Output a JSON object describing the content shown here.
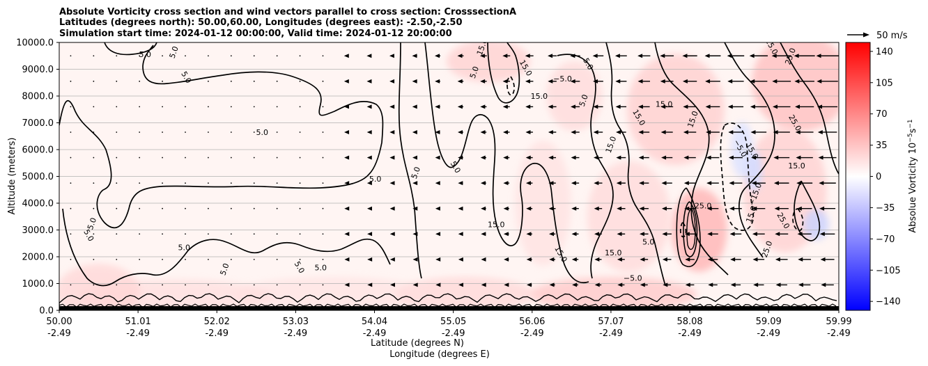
{
  "chart_data": {
    "type": "heatmap",
    "title_lines": [
      "Absolute Vorticity cross section and wind vectors parallel to cross section: CrosssectionA",
      "Latitudes (degrees north): 50.00,60.00, Longitudes (degrees east): -2.50,-2.50",
      "Simulation start time: 2024-01-12 00:00:00, Valid time: 2024-01-12 20:00:00"
    ],
    "xlabel_lines": [
      "Latitude (degrees N)",
      "Longitude (degrees E)"
    ],
    "ylabel": "Altitude (meters)",
    "x_ticks": [
      {
        "lat": "50.00",
        "lon": "-2.49",
        "value": 50.0
      },
      {
        "lat": "51.01",
        "lon": "-2.49",
        "value": 51.01
      },
      {
        "lat": "52.02",
        "lon": "-2.49",
        "value": 52.02
      },
      {
        "lat": "53.03",
        "lon": "-2.49",
        "value": 53.03
      },
      {
        "lat": "54.04",
        "lon": "-2.49",
        "value": 54.04
      },
      {
        "lat": "55.05",
        "lon": "-2.49",
        "value": 55.05
      },
      {
        "lat": "56.06",
        "lon": "-2.49",
        "value": 56.06
      },
      {
        "lat": "57.07",
        "lon": "-2.49",
        "value": 57.07
      },
      {
        "lat": "58.08",
        "lon": "-2.49",
        "value": 58.08
      },
      {
        "lat": "59.09",
        "lon": "-2.49",
        "value": 59.09
      },
      {
        "lat": "59.99",
        "lon": "-2.49",
        "value": 59.99
      }
    ],
    "xlim": [
      50.0,
      59.99
    ],
    "y_ticks": [
      "0.0",
      "1000.0",
      "2000.0",
      "3000.0",
      "4000.0",
      "5000.0",
      "6000.0",
      "7000.0",
      "8000.0",
      "9000.0",
      "10000.0"
    ],
    "ylim": [
      0,
      10000
    ],
    "grid": "horizontal",
    "colorbar": {
      "label": "Absolue Vorticity 10$^{-5}$s$^{-1}$",
      "label_main": "Absolue Vorticity 10",
      "label_sup1": "−5",
      "label_mid": "s",
      "label_sup2": "−1",
      "ticks": [
        "140",
        "105",
        "70",
        "35",
        "0",
        "−35",
        "−70",
        "−105",
        "−140"
      ],
      "range": [
        -150,
        150
      ],
      "colormap": "bwr",
      "color_min": "#0000ff",
      "color_mid": "#ffffff",
      "color_max": "#ff0000"
    },
    "quiver_key": {
      "label": "50 m/s",
      "value": 50
    },
    "contour_levels": [
      5.0,
      15.0,
      25.0
    ],
    "contour_color": "#000000",
    "contour_labels": [
      {
        "text": "5.0",
        "lat": 51.1,
        "alt": 9450
      },
      {
        "text": "5.0",
        "lat": 51.5,
        "alt": 9600
      },
      {
        "text": "5.0",
        "lat": 51.6,
        "alt": 8650
      },
      {
        "text": "5.0",
        "lat": 52.6,
        "alt": 6550
      },
      {
        "text": "5.0",
        "lat": 50.45,
        "alt": 3200
      },
      {
        "text": "5.0",
        "lat": 50.35,
        "alt": 2750
      },
      {
        "text": "5.0",
        "lat": 51.6,
        "alt": 2250
      },
      {
        "text": "5.0",
        "lat": 52.15,
        "alt": 1500
      },
      {
        "text": "5.0",
        "lat": 53.05,
        "alt": 1560
      },
      {
        "text": "5.0",
        "lat": 53.35,
        "alt": 1500
      },
      {
        "text": "5.0",
        "lat": 54.6,
        "alt": 5100
      },
      {
        "text": "5.0",
        "lat": 55.05,
        "alt": 5300
      },
      {
        "text": "5.0",
        "lat": 54.05,
        "alt": 4800
      },
      {
        "text": "5.0",
        "lat": 55.35,
        "alt": 8850
      },
      {
        "text": "5.0",
        "lat": 56.75,
        "alt": 9150
      },
      {
        "text": "5.0",
        "lat": 57.55,
        "alt": 2450
      },
      {
        "text": "5.0",
        "lat": 56.75,
        "alt": 7800
      },
      {
        "text": "15.0",
        "lat": 55.95,
        "alt": 9000
      },
      {
        "text": "15.0",
        "lat": 56.15,
        "alt": 7900
      },
      {
        "text": "15.0",
        "lat": 57.1,
        "alt": 6150
      },
      {
        "text": "15.0",
        "lat": 57.4,
        "alt": 7150
      },
      {
        "text": "15.0",
        "lat": 57.75,
        "alt": 7600
      },
      {
        "text": "15.0",
        "lat": 55.45,
        "alt": 9800
      },
      {
        "text": "15.0",
        "lat": 56.4,
        "alt": 2050
      },
      {
        "text": "15.0",
        "lat": 57.1,
        "alt": 2050
      },
      {
        "text": "15.0",
        "lat": 58.15,
        "alt": 7100
      },
      {
        "text": "15.0",
        "lat": 58.85,
        "alt": 5900
      },
      {
        "text": "15.0",
        "lat": 59.45,
        "alt": 5300
      },
      {
        "text": "15.0",
        "lat": 58.9,
        "alt": 3550
      },
      {
        "text": "15.0",
        "lat": 59.1,
        "alt": 9800
      },
      {
        "text": "15.0",
        "lat": 55.6,
        "alt": 3100
      },
      {
        "text": "25.0",
        "lat": 59.4,
        "alt": 9450
      },
      {
        "text": "25.0",
        "lat": 59.4,
        "alt": 6950
      },
      {
        "text": "25.0",
        "lat": 58.25,
        "alt": 3800
      },
      {
        "text": "25.0",
        "lat": 59.1,
        "alt": 2250
      },
      {
        "text": "25.0",
        "lat": 59.25,
        "alt": 3300
      },
      {
        "text": "−5.0",
        "lat": 56.45,
        "alt": 8550
      },
      {
        "text": "−15.0",
        "lat": 58.95,
        "alt": 4300
      },
      {
        "text": "−5.0",
        "lat": 58.7,
        "alt": 6000
      },
      {
        "text": "−5.0",
        "lat": 57.35,
        "alt": 1100
      }
    ]
  }
}
